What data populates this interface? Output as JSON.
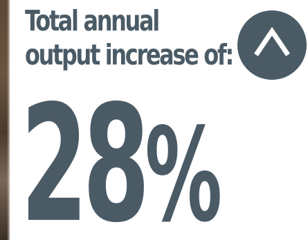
{
  "headline": {
    "line1": "Total annual",
    "line2": "output increase of:"
  },
  "stat": {
    "value": "28",
    "unit": "%"
  },
  "badge": {
    "icon": "chevron-up-icon"
  },
  "colors": {
    "primary": "#4b5b66",
    "background": "#ffffff"
  }
}
